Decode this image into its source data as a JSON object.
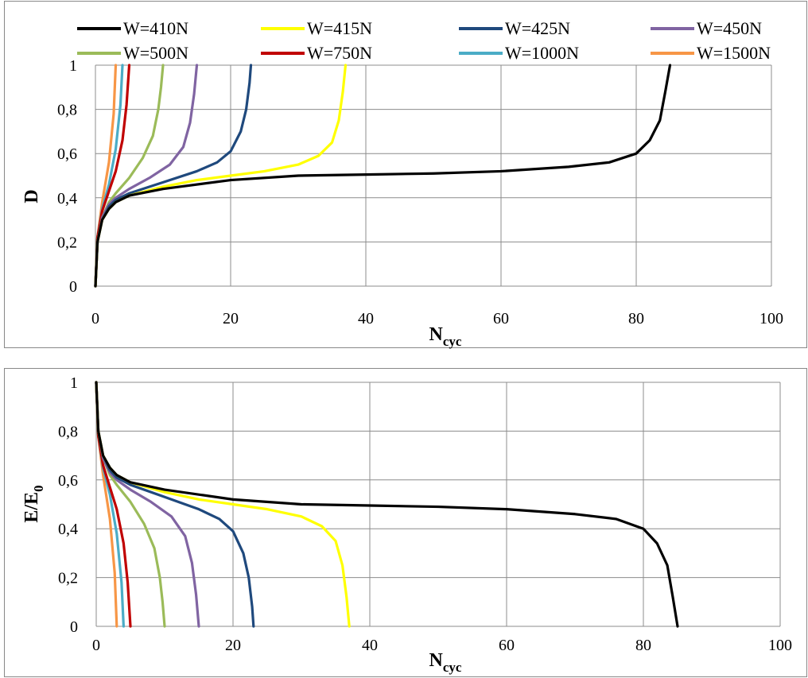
{
  "series_styles": [
    {
      "name": "W=410N",
      "color": "#000000"
    },
    {
      "name": "W=415N",
      "color": "#FFFF00"
    },
    {
      "name": "W=425N",
      "color": "#1F497D"
    },
    {
      "name": "W=450N",
      "color": "#8064A2"
    },
    {
      "name": "W=500N",
      "color": "#9BBB59"
    },
    {
      "name": "W=750N",
      "color": "#C00000"
    },
    {
      "name": "W=1000N",
      "color": "#4BACC6"
    },
    {
      "name": "W=1500N",
      "color": "#F79646"
    }
  ],
  "chart_data": [
    {
      "type": "line",
      "title": "",
      "xlabel": "N",
      "xlabel_subscript": "cyc",
      "ylabel": "D",
      "ylabel_subscript": "",
      "xlim": [
        0,
        100
      ],
      "ylim": [
        0,
        1
      ],
      "x_ticks": [
        "0",
        "20",
        "40",
        "60",
        "80",
        "100"
      ],
      "y_ticks": [
        "0",
        "0,2",
        "0,4",
        "0,6",
        "0,8",
        "1"
      ],
      "grid": true,
      "legend_position": "top",
      "series": [
        {
          "name": "W=410N",
          "x": [
            0,
            0.3,
            1,
            2,
            3,
            5,
            10,
            20,
            30,
            40,
            50,
            60,
            70,
            76,
            80,
            82,
            83.5,
            84.3,
            85
          ],
          "y": [
            0,
            0.2,
            0.3,
            0.35,
            0.38,
            0.41,
            0.44,
            0.48,
            0.5,
            0.505,
            0.51,
            0.52,
            0.54,
            0.56,
            0.6,
            0.66,
            0.75,
            0.88,
            1.0
          ]
        },
        {
          "name": "W=415N",
          "x": [
            0,
            0.3,
            1,
            2,
            3,
            5,
            10,
            15,
            20,
            25,
            30,
            33,
            35,
            36,
            36.6,
            37
          ],
          "y": [
            0,
            0.2,
            0.3,
            0.35,
            0.38,
            0.41,
            0.45,
            0.48,
            0.5,
            0.52,
            0.55,
            0.59,
            0.65,
            0.75,
            0.88,
            1.0
          ]
        },
        {
          "name": "W=425N",
          "x": [
            0,
            0.3,
            1,
            2,
            3,
            5,
            10,
            15,
            18,
            20,
            21.5,
            22.3,
            22.8,
            23
          ],
          "y": [
            0,
            0.2,
            0.3,
            0.36,
            0.39,
            0.42,
            0.47,
            0.52,
            0.56,
            0.61,
            0.7,
            0.8,
            0.92,
            1.0
          ]
        },
        {
          "name": "W=450N",
          "x": [
            0,
            0.3,
            1,
            2,
            3,
            5,
            8,
            11,
            13,
            14,
            14.6,
            15
          ],
          "y": [
            0,
            0.2,
            0.31,
            0.37,
            0.4,
            0.44,
            0.49,
            0.55,
            0.63,
            0.74,
            0.87,
            1.0
          ]
        },
        {
          "name": "W=500N",
          "x": [
            0,
            0.3,
            1,
            2,
            3,
            5,
            7,
            8.5,
            9.3,
            9.7,
            10
          ],
          "y": [
            0,
            0.2,
            0.31,
            0.38,
            0.42,
            0.49,
            0.58,
            0.68,
            0.8,
            0.9,
            1.0
          ]
        },
        {
          "name": "W=750N",
          "x": [
            0,
            0.3,
            1,
            2,
            3,
            4,
            4.6,
            5
          ],
          "y": [
            0,
            0.22,
            0.34,
            0.43,
            0.52,
            0.66,
            0.82,
            1.0
          ]
        },
        {
          "name": "W=1000N",
          "x": [
            0,
            0.3,
            1,
            2,
            3,
            3.7,
            4
          ],
          "y": [
            0,
            0.22,
            0.35,
            0.46,
            0.62,
            0.82,
            1.0
          ]
        },
        {
          "name": "W=1500N",
          "x": [
            0,
            0.3,
            1,
            2,
            2.7,
            3
          ],
          "y": [
            0,
            0.22,
            0.38,
            0.56,
            0.78,
            1.0
          ]
        }
      ]
    },
    {
      "type": "line",
      "title": "",
      "xlabel": "N",
      "xlabel_subscript": "cyc",
      "ylabel": "E/E",
      "ylabel_subscript": "0",
      "xlim": [
        0,
        100
      ],
      "ylim": [
        0,
        1
      ],
      "x_ticks": [
        "0",
        "20",
        "40",
        "60",
        "80",
        "100"
      ],
      "y_ticks": [
        "0",
        "0,2",
        "0,4",
        "0,6",
        "0,8",
        "1"
      ],
      "grid": true,
      "legend_position": "none",
      "series": [
        {
          "name": "W=410N",
          "x": [
            0,
            0.3,
            1,
            2,
            3,
            5,
            10,
            20,
            30,
            40,
            50,
            60,
            70,
            76,
            80,
            82,
            83.5,
            84.3,
            85
          ],
          "y": [
            1,
            0.8,
            0.7,
            0.65,
            0.62,
            0.59,
            0.56,
            0.52,
            0.5,
            0.495,
            0.49,
            0.48,
            0.46,
            0.44,
            0.4,
            0.34,
            0.25,
            0.12,
            0
          ]
        },
        {
          "name": "W=415N",
          "x": [
            0,
            0.3,
            1,
            2,
            3,
            5,
            10,
            15,
            20,
            25,
            30,
            33,
            35,
            36,
            36.6,
            37
          ],
          "y": [
            1,
            0.8,
            0.7,
            0.65,
            0.62,
            0.59,
            0.55,
            0.52,
            0.5,
            0.48,
            0.45,
            0.41,
            0.35,
            0.25,
            0.12,
            0
          ]
        },
        {
          "name": "W=425N",
          "x": [
            0,
            0.3,
            1,
            2,
            3,
            5,
            10,
            15,
            18,
            20,
            21.5,
            22.3,
            22.8,
            23
          ],
          "y": [
            1,
            0.8,
            0.7,
            0.64,
            0.61,
            0.58,
            0.53,
            0.48,
            0.44,
            0.39,
            0.3,
            0.2,
            0.08,
            0
          ]
        },
        {
          "name": "W=450N",
          "x": [
            0,
            0.3,
            1,
            2,
            3,
            5,
            8,
            11,
            13,
            14,
            14.6,
            15
          ],
          "y": [
            1,
            0.8,
            0.69,
            0.63,
            0.6,
            0.56,
            0.51,
            0.45,
            0.37,
            0.26,
            0.13,
            0
          ]
        },
        {
          "name": "W=500N",
          "x": [
            0,
            0.3,
            1,
            2,
            3,
            5,
            7,
            8.5,
            9.3,
            9.7,
            10
          ],
          "y": [
            1,
            0.8,
            0.69,
            0.62,
            0.58,
            0.51,
            0.42,
            0.32,
            0.2,
            0.1,
            0
          ]
        },
        {
          "name": "W=750N",
          "x": [
            0,
            0.3,
            1,
            2,
            3,
            4,
            4.6,
            5
          ],
          "y": [
            1,
            0.78,
            0.66,
            0.57,
            0.48,
            0.34,
            0.18,
            0
          ]
        },
        {
          "name": "W=1000N",
          "x": [
            0,
            0.3,
            1,
            2,
            3,
            3.7,
            4
          ],
          "y": [
            1,
            0.78,
            0.65,
            0.54,
            0.38,
            0.18,
            0
          ]
        },
        {
          "name": "W=1500N",
          "x": [
            0,
            0.3,
            1,
            2,
            2.7,
            3
          ],
          "y": [
            1,
            0.78,
            0.62,
            0.44,
            0.22,
            0
          ]
        }
      ]
    }
  ]
}
